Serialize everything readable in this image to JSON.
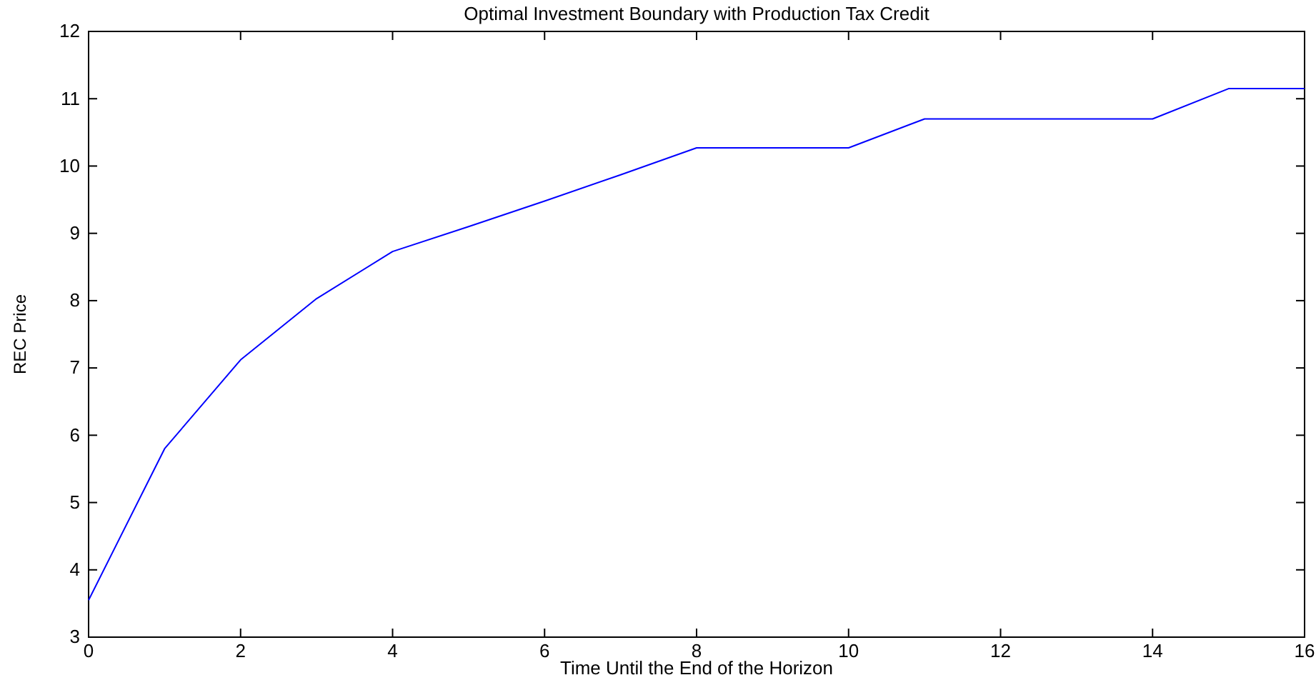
{
  "chart_data": {
    "type": "line",
    "title": "Optimal Investment Boundary with Production Tax Credit",
    "xlabel": "Time Until the End of the Horizon",
    "ylabel": "REC Price",
    "x": [
      0,
      1,
      2,
      3,
      4,
      5,
      6,
      7,
      8,
      9,
      10,
      11,
      12,
      13,
      14,
      15,
      16
    ],
    "series": [
      {
        "color": "#0000ff",
        "values": [
          3.55,
          5.8,
          7.12,
          8.03,
          8.73,
          9.1,
          9.48,
          9.87,
          10.27,
          10.27,
          10.27,
          10.7,
          10.7,
          10.7,
          10.7,
          11.15,
          11.15
        ]
      }
    ],
    "xlim": [
      0,
      16
    ],
    "xticks": [
      0,
      2,
      4,
      6,
      8,
      10,
      12,
      14,
      16
    ],
    "ylim": [
      3,
      12
    ],
    "yticks": [
      3,
      4,
      5,
      6,
      7,
      8,
      9,
      10,
      11,
      12
    ],
    "grid": false,
    "marker": "none",
    "line_style": "solid"
  }
}
